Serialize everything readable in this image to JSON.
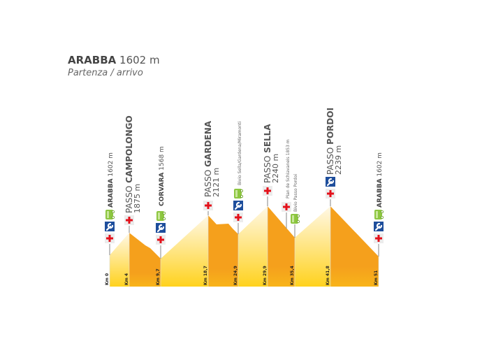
{
  "header": {
    "name": "ARABBA",
    "elevation": "1602 m",
    "subtitle": "Partenza / arrivo"
  },
  "colors": {
    "descent": "#F5A01C",
    "climb_top": "#FFF8E6",
    "climb_bottom": "#FFD21E",
    "first_aid": "#E3101A",
    "repair": "#1E4E9C",
    "bus": "#8CC63F",
    "text": "#555555"
  },
  "waypoints": [
    {
      "km": "Km 0",
      "prefix": "",
      "name": "ARABBA",
      "elev": "1602 m",
      "icons": [
        "first-aid",
        "repair",
        "bus"
      ]
    },
    {
      "km": "Km 4",
      "prefix": "PASSO",
      "name": "CAMPOLONGO",
      "elev": "1875 m",
      "icons": [
        "first-aid"
      ]
    },
    {
      "km": "Km 9,7",
      "prefix": "",
      "name": "CORVARA",
      "elev": "1568 m",
      "icons": [
        "first-aid",
        "repair",
        "bus"
      ]
    },
    {
      "km": "Km 18,7",
      "prefix": "PASSO",
      "name": "GARDENA",
      "elev": "2121 m",
      "icons": [
        "first-aid"
      ]
    },
    {
      "km": "Km 24,9",
      "prefix": "",
      "name": "",
      "elev": "",
      "note": "Bivio Sella/Gardena/Miramonti",
      "icons": [
        "first-aid",
        "repair",
        "bus"
      ]
    },
    {
      "km": "Km 29,9",
      "prefix": "PASSO",
      "name": "SELLA",
      "elev": "2240 m",
      "icons": [
        "first-aid"
      ]
    },
    {
      "km": "",
      "prefix": "",
      "name": "",
      "elev": "",
      "note": "Pian de Schiavaneis 1853 m",
      "icons": [
        "first-aid"
      ]
    },
    {
      "km": "Km 35,4",
      "prefix": "",
      "name": "",
      "elev": "",
      "note": "Bivio Passo Pordoi",
      "icons": [
        "bus"
      ]
    },
    {
      "km": "Km 41,8",
      "prefix": "PASSO",
      "name": "PORDOI",
      "elev": "2239 m",
      "icons": [
        "first-aid",
        "repair"
      ]
    },
    {
      "km": "Km 51",
      "prefix": "",
      "name": "ARABBA",
      "elev": "1602 m",
      "icons": [
        "first-aid",
        "repair",
        "bus"
      ]
    }
  ]
}
